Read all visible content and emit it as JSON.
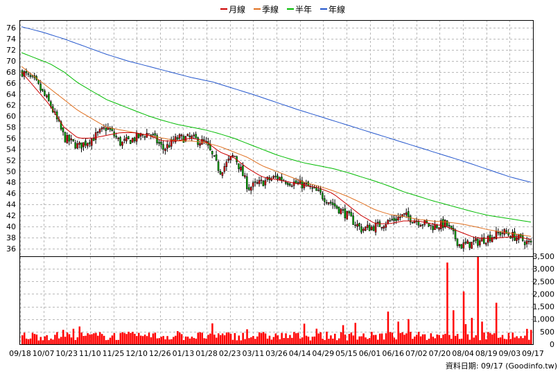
{
  "chart_data": {
    "type": "candlestick",
    "legend": [
      {
        "label": "月線",
        "color": "#cc0000"
      },
      {
        "label": "季線",
        "color": "#e07020"
      },
      {
        "label": "半年",
        "color": "#00bb00"
      },
      {
        "label": "年線",
        "color": "#2255cc"
      }
    ],
    "price_axis": {
      "ticks": [
        36,
        38,
        40,
        42,
        44,
        46,
        48,
        50,
        52,
        54,
        56,
        58,
        60,
        62,
        64,
        66,
        68,
        70,
        72,
        74,
        76
      ],
      "ylim": [
        34.6,
        77.4
      ]
    },
    "volume_axis": {
      "ticks": [
        "0",
        "500",
        "1,000",
        "1,500",
        "2,000",
        "2,500",
        "3,000",
        "3,500"
      ],
      "tick_values": [
        0,
        500,
        1000,
        1500,
        2000,
        2500,
        3000,
        3500
      ],
      "ylim": [
        0,
        3500
      ]
    },
    "x_labels": [
      "09/18",
      "10/07",
      "10/23",
      "11/10",
      "11/25",
      "12/10",
      "12/26",
      "01/13",
      "01/28",
      "02/23",
      "03/11",
      "03/26",
      "04/14",
      "04/29",
      "05/15",
      "06/01",
      "06/16",
      "07/02",
      "07/20",
      "08/04",
      "08/19",
      "09/03",
      "09/17"
    ],
    "price_anchors": [
      68,
      66,
      62,
      56,
      54.5,
      56,
      58,
      55,
      56,
      57,
      54,
      56,
      56,
      55,
      50,
      53,
      47,
      48,
      49,
      48,
      47.5,
      46,
      44,
      42,
      39.5,
      40,
      41,
      42,
      41,
      40,
      40.5,
      36.5,
      37,
      38,
      39,
      38,
      36.8
    ],
    "ma_month": [
      68,
      65,
      62,
      58,
      56,
      56,
      56.5,
      57,
      57,
      56.5,
      55.5,
      55.5,
      56,
      55.5,
      53.5,
      52.5,
      50.5,
      49,
      48.5,
      48,
      47.5,
      47,
      46,
      44,
      42,
      40.5,
      40.5,
      41,
      41,
      40.5,
      40,
      39,
      38,
      37.8,
      38,
      38.2,
      37.6
    ],
    "ma_season": [
      69,
      67,
      65,
      63,
      61,
      59.5,
      58,
      57.5,
      57,
      56.5,
      56,
      55.5,
      55.5,
      55.2,
      54.5,
      53.5,
      52.5,
      51,
      50,
      49,
      48,
      47.3,
      46.5,
      45.5,
      44.3,
      43,
      42.2,
      41.8,
      41.3,
      41,
      40.8,
      40.5,
      40,
      39.4,
      39,
      38.6,
      38.2
    ],
    "ma_half_year": [
      71.5,
      70.5,
      69.5,
      68,
      66,
      64.5,
      63,
      62,
      61,
      60,
      59.2,
      58.5,
      58,
      57.5,
      56.8,
      56,
      55,
      54,
      53,
      52.2,
      51.5,
      51,
      50.5,
      49.8,
      49,
      48.2,
      47.3,
      46.3,
      45.5,
      44.7,
      44,
      43.3,
      42.6,
      42,
      41.6,
      41.2,
      40.8
    ],
    "ma_year": [
      76.2,
      75.2,
      74,
      72.6,
      71.2,
      70,
      69,
      68,
      67,
      66.2,
      65,
      63.8,
      62.5,
      61.2,
      60,
      58.8,
      57.6,
      56.4,
      55.2,
      54,
      52.8,
      51.6,
      50.3,
      49,
      48
    ],
    "volume_spikes": [
      {
        "pos": 0.835,
        "value": 3250
      },
      {
        "pos": 0.848,
        "value": 1350
      },
      {
        "pos": 0.866,
        "value": 2100
      },
      {
        "pos": 0.882,
        "value": 1050
      },
      {
        "pos": 0.896,
        "value": 3500
      },
      {
        "pos": 0.873,
        "value": 800
      },
      {
        "pos": 0.905,
        "value": 900
      },
      {
        "pos": 0.93,
        "value": 1650
      },
      {
        "pos": 0.72,
        "value": 1300
      },
      {
        "pos": 0.655,
        "value": 850
      },
      {
        "pos": 0.74,
        "value": 900
      },
      {
        "pos": 0.76,
        "value": 1000
      }
    ],
    "source_note": "資料日期: 09/17  (Goodinfo.tw)"
  }
}
